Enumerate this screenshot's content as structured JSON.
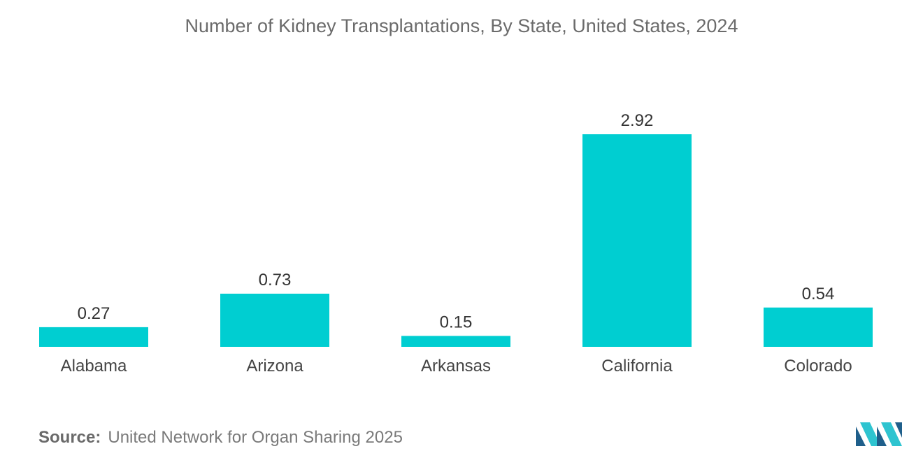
{
  "chart_data": {
    "type": "bar",
    "title": "Number of Kidney Transplantations, By State, United States, 2024",
    "categories": [
      "Alabama",
      "Arizona",
      "Arkansas",
      "California",
      "Colorado"
    ],
    "values": [
      0.27,
      0.73,
      0.15,
      2.92,
      0.54
    ],
    "value_labels": [
      "0.27",
      "0.73",
      "0.15",
      "2.92",
      "0.54"
    ],
    "xlabel": "",
    "ylabel": "",
    "ylim": [
      0,
      2.92
    ],
    "grid": false,
    "bar_color": "#00CED1"
  },
  "source": {
    "label": "Source:",
    "text": "United Network for Organ Sharing 2025"
  },
  "logo": {
    "icon": "mordor-intelligence-logo-icon",
    "colors": [
      "#1f5f8b",
      "#2ec4d0"
    ]
  }
}
